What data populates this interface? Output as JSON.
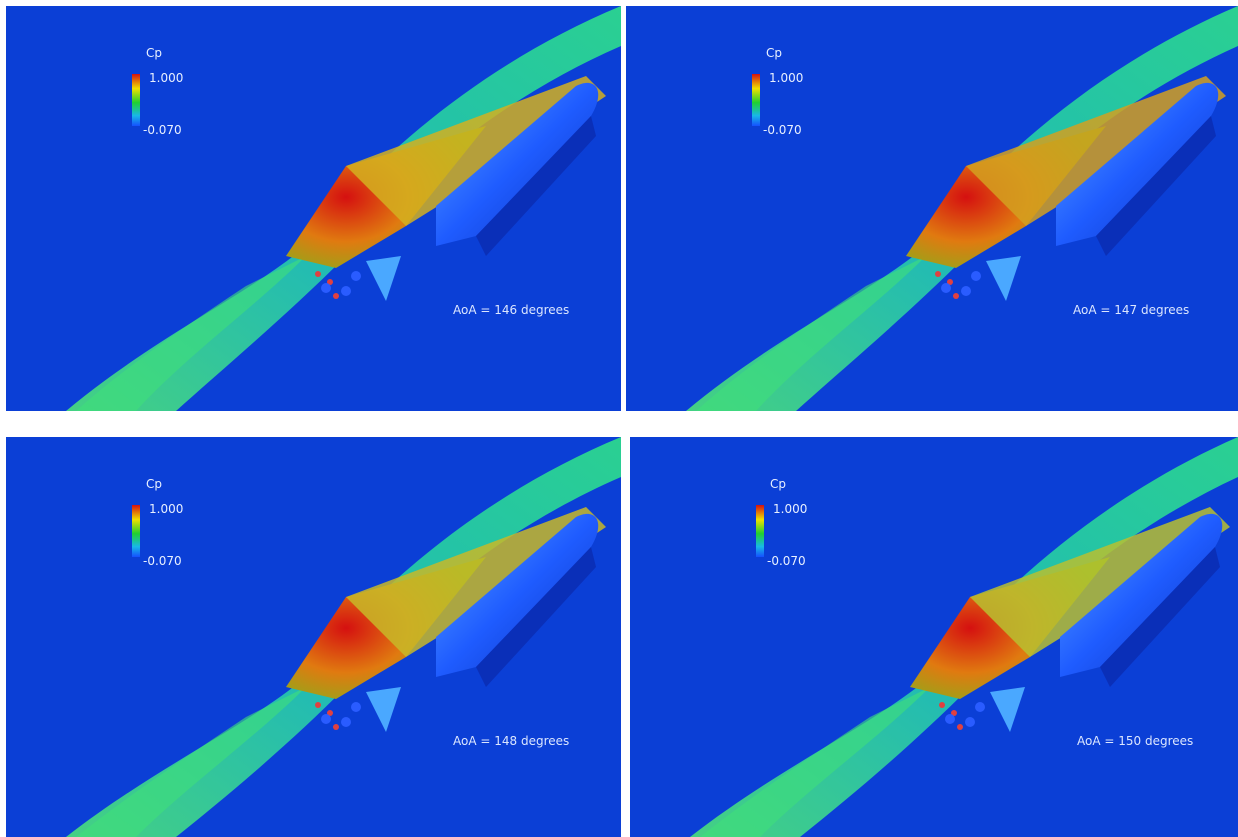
{
  "panels": [
    {
      "legend_title": "Cp",
      "legend_max": "1.000",
      "legend_min": "-0.070",
      "aoa_label": "AoA = 146 degrees"
    },
    {
      "legend_title": "Cp",
      "legend_max": "1.000",
      "legend_min": "-0.070",
      "aoa_label": "AoA = 147 degrees"
    },
    {
      "legend_title": "Cp",
      "legend_max": "1.000",
      "legend_min": "-0.070",
      "aoa_label": "AoA = 148 degrees"
    },
    {
      "legend_title": "Cp",
      "legend_max": "1.000",
      "legend_min": "-0.070",
      "aoa_label": "AoA = 150 degrees"
    }
  ],
  "colors": {
    "background": "#0b3fd6",
    "shock_green": "#2fd87a",
    "shock_cyan": "#1fb6e4",
    "high_pressure": "#d51010",
    "mid_pressure": "#f0e000",
    "body": "#1f5cff"
  }
}
